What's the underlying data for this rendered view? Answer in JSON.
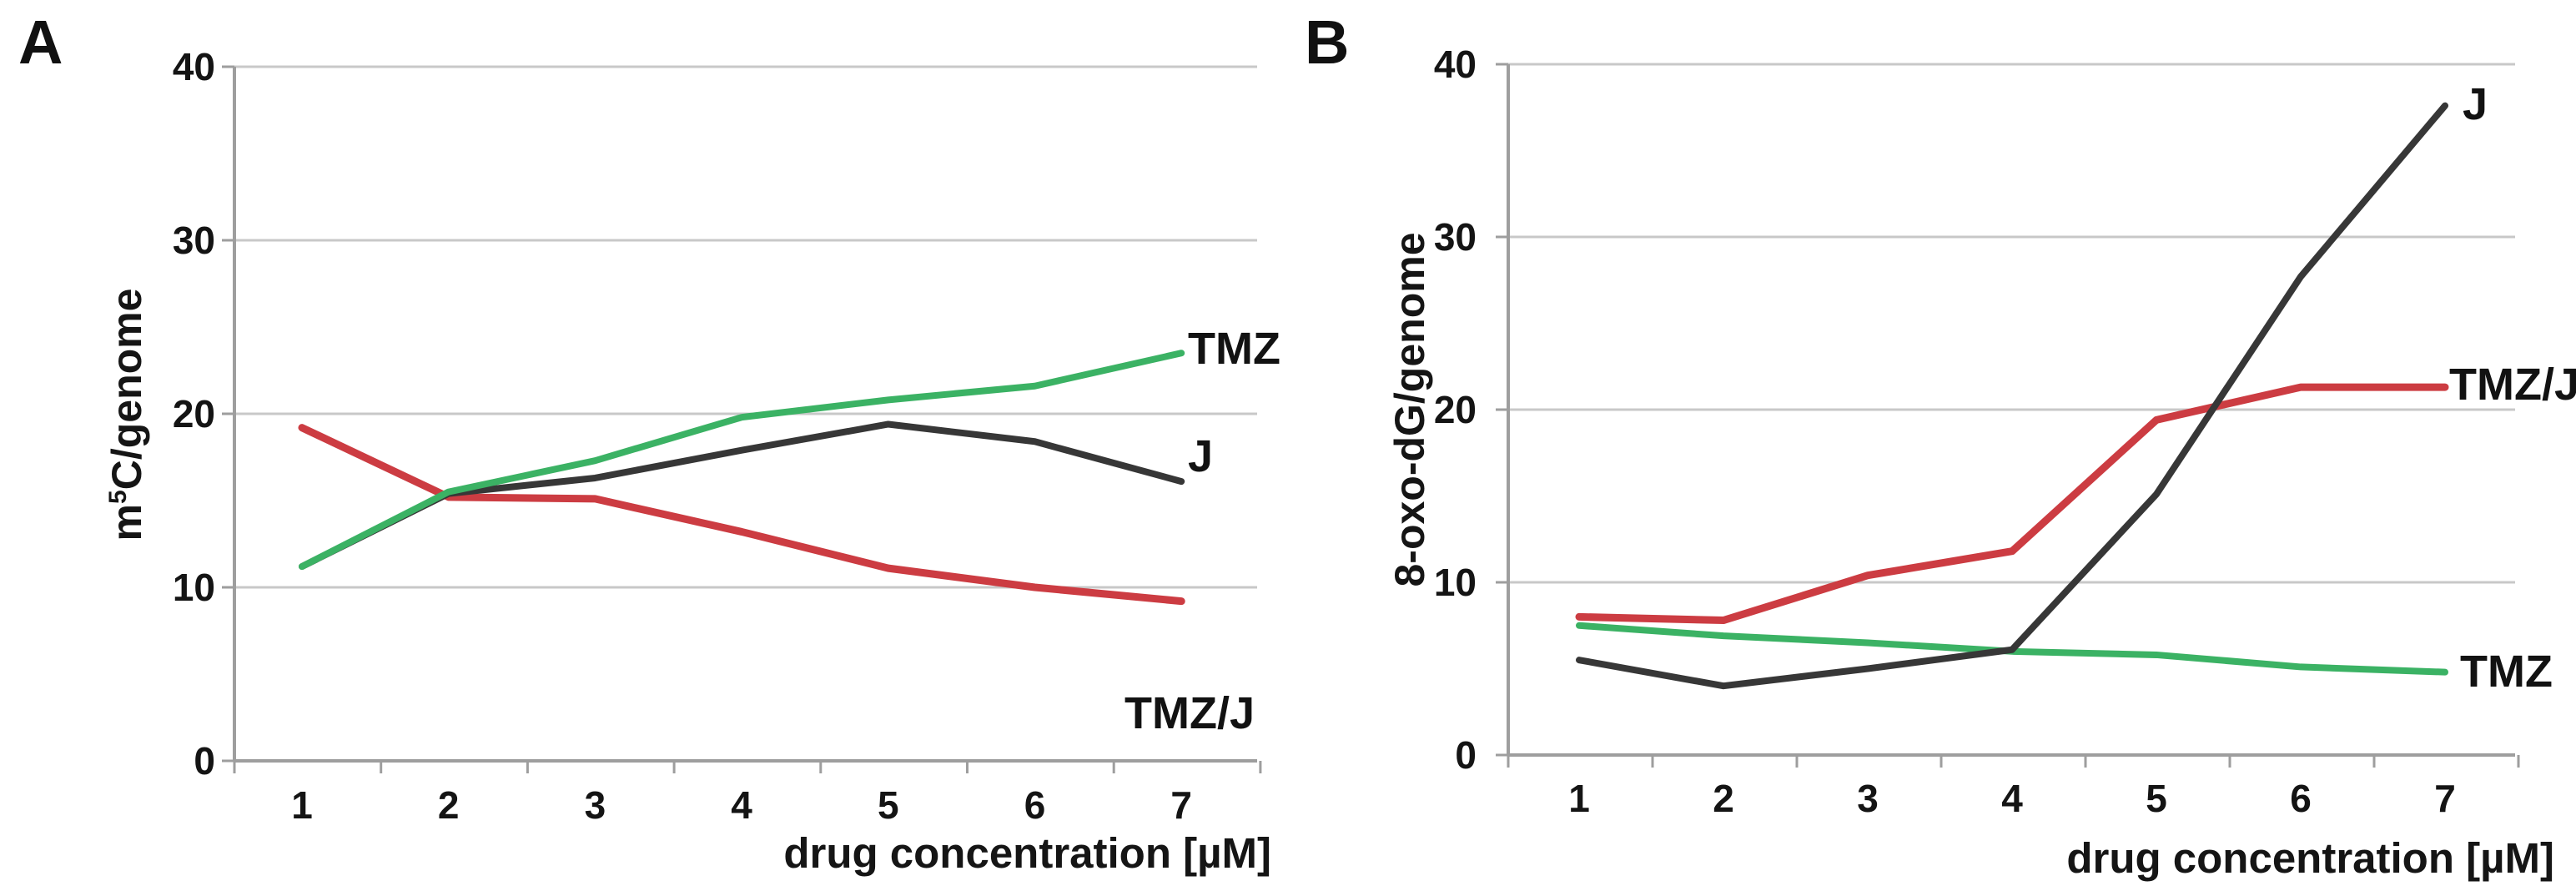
{
  "figure": {
    "background": "#ffffff",
    "text_color": "#141414",
    "gridline_color": "#c8c8c8",
    "axis_color": "#9e9e9e"
  },
  "chart_data": [
    {
      "type": "line",
      "panel": "A",
      "xlabel": "drug concentration [µM]",
      "ylabel": "m⁵C/genome",
      "ylabel_parts": {
        "prefix": "m",
        "sup": "5",
        "suffix": "C/genome"
      },
      "x": [
        1,
        2,
        3,
        4,
        5,
        6,
        7
      ],
      "xticks": [
        "1",
        "2",
        "3",
        "4",
        "5",
        "6",
        "7"
      ],
      "yticks": [
        0,
        10,
        20,
        30,
        40
      ],
      "ylim": [
        0,
        40
      ],
      "grid": "horizontal",
      "legend_position": "labels-at-line-ends",
      "series": [
        {
          "name": "TMZ/J",
          "color": "#cc3c42",
          "values": [
            19.2,
            15.2,
            15.1,
            13.2,
            11.1,
            10.0,
            9.2
          ]
        },
        {
          "name": "J",
          "color": "#373737",
          "values": [
            11.2,
            15.4,
            16.3,
            17.9,
            19.4,
            18.4,
            16.1
          ]
        },
        {
          "name": "TMZ",
          "color": "#3bb264",
          "values": [
            11.2,
            15.5,
            17.3,
            19.8,
            20.8,
            21.6,
            23.5
          ]
        }
      ]
    },
    {
      "type": "line",
      "panel": "B",
      "xlabel": "drug concentration [µM]",
      "ylabel": "8-oxo-dG/genome",
      "ylabel_parts": {
        "prefix": "8-oxo-dG/genome",
        "sup": "",
        "suffix": ""
      },
      "x": [
        1,
        2,
        3,
        4,
        5,
        6,
        7
      ],
      "xticks": [
        "1",
        "2",
        "3",
        "4",
        "5",
        "6",
        "7"
      ],
      "yticks": [
        0,
        10,
        20,
        30,
        40
      ],
      "ylim": [
        0,
        40
      ],
      "grid": "horizontal",
      "legend_position": "labels-at-line-ends",
      "series": [
        {
          "name": "TMZ/J",
          "color": "#cc3c42",
          "values": [
            8.0,
            7.8,
            10.4,
            11.8,
            19.4,
            21.3,
            21.3
          ]
        },
        {
          "name": "TMZ",
          "color": "#3bb264",
          "values": [
            7.5,
            6.9,
            6.5,
            6.0,
            5.8,
            5.1,
            4.8
          ]
        },
        {
          "name": "J",
          "color": "#373737",
          "values": [
            5.5,
            4.0,
            5.0,
            6.1,
            15.1,
            27.7,
            37.6
          ]
        }
      ]
    }
  ]
}
